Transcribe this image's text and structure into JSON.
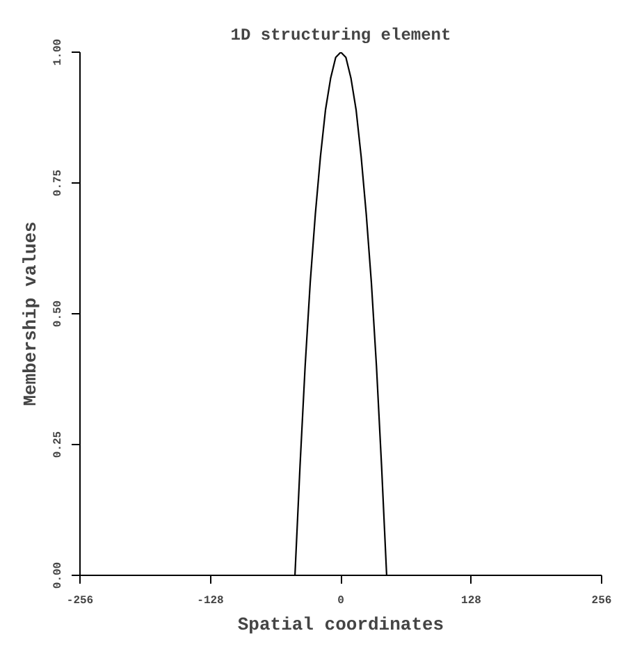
{
  "chart_data": {
    "type": "line",
    "title": "1D structuring element",
    "xlabel": "Spatial coordinates",
    "ylabel": "Membership values",
    "x": [
      -45,
      -40,
      -35,
      -30,
      -25,
      -20,
      -15,
      -10,
      -5,
      0,
      5,
      10,
      15,
      20,
      25,
      30,
      35,
      40,
      45
    ],
    "series": [
      {
        "color": "#000000",
        "values": [
          0,
          0.21,
          0.4,
          0.56,
          0.69,
          0.8,
          0.89,
          0.95,
          0.99,
          1,
          0.99,
          0.95,
          0.89,
          0.8,
          0.69,
          0.56,
          0.4,
          0.21,
          0
        ]
      }
    ],
    "xlim": [
      -256,
      256
    ],
    "ylim": [
      0,
      1
    ],
    "xticks": [
      -256,
      -128,
      0,
      128,
      256
    ],
    "yticks": [
      {
        "value": 0,
        "label": "0.00"
      },
      {
        "value": 0.25,
        "label": "0.25"
      },
      {
        "value": 0.5,
        "label": "0.50"
      },
      {
        "value": 0.75,
        "label": "0.75"
      },
      {
        "value": 1,
        "label": "1.00"
      }
    ],
    "grid": false,
    "marker": "none",
    "line_style": "solid"
  }
}
